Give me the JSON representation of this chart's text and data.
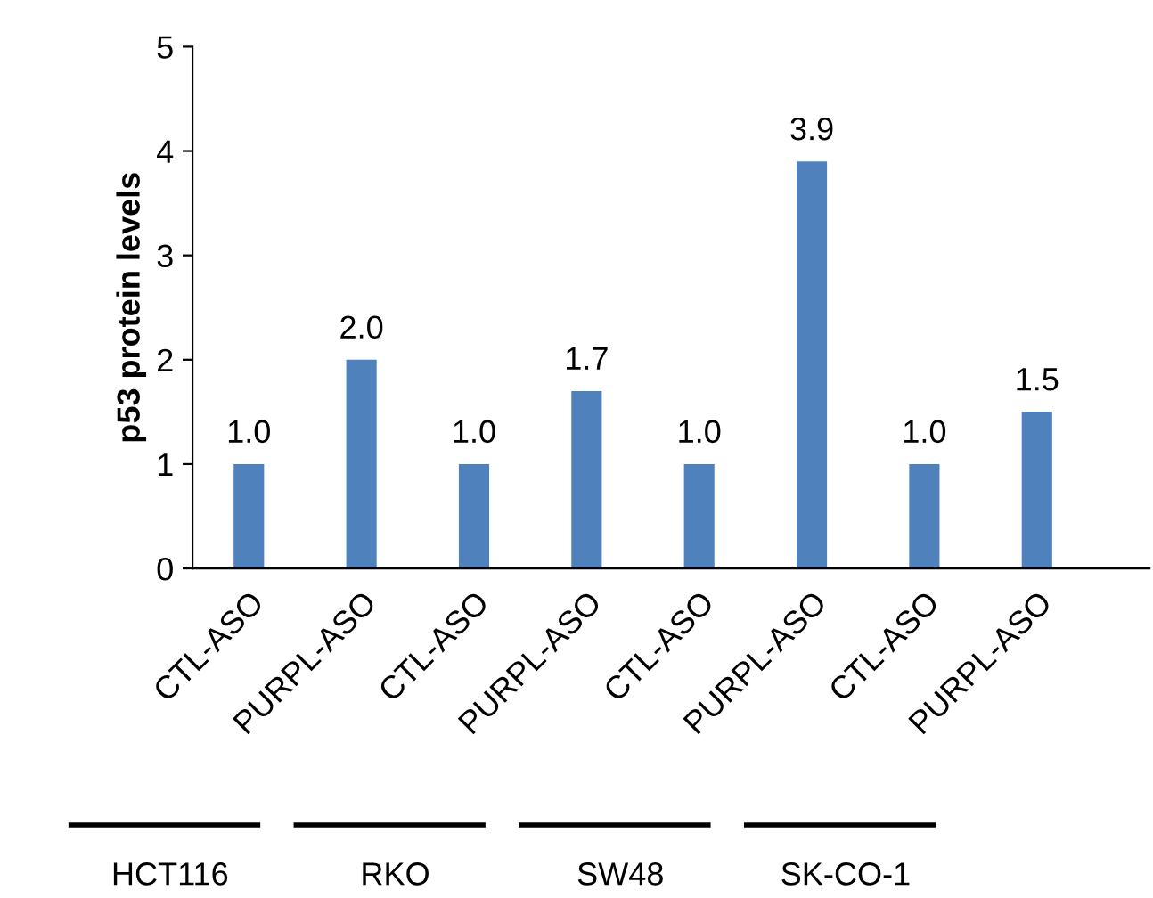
{
  "chart_data": {
    "type": "bar",
    "ylabel": "p53 protein levels",
    "categories": [
      "CTL-ASO",
      "PURPL-ASO",
      "CTL-ASO",
      "PURPL-ASO",
      "CTL-ASO",
      "PURPL-ASO",
      "CTL-ASO",
      "PURPL-ASO"
    ],
    "values": [
      1.0,
      2.0,
      1.0,
      1.7,
      1.0,
      3.9,
      1.0,
      1.5
    ],
    "color": "#4f81bd",
    "ylim": [
      0,
      5
    ],
    "yticks": [
      0,
      1,
      2,
      3,
      4,
      5
    ],
    "value_labels": [
      "1.0",
      "2.0",
      "1.0",
      "1.7",
      "1.0",
      "3.9",
      "1.0",
      "1.5"
    ],
    "grid": false,
    "legend": false,
    "annotations": [
      "HCT116",
      "RKO",
      "SW48",
      "SK-CO-1"
    ]
  }
}
